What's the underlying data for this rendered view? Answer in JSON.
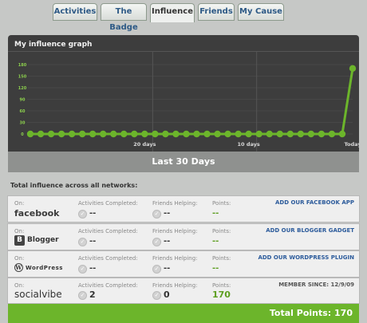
{
  "tabs": [
    "Activities",
    "The Badge",
    "Influence",
    "Friends",
    "My Cause"
  ],
  "active_tab": "Influence",
  "graph_title": "My influence graph",
  "period_label": "Last 30 Days",
  "total_heading": "Total influence across all networks:",
  "labels": {
    "on": "On:",
    "activities": "Activities Completed:",
    "friends": "Friends Helping:",
    "points": "Points:"
  },
  "networks": [
    {
      "name": "facebook",
      "activities": "--",
      "friends": "--",
      "points": "--",
      "action": "ADD OUR FACEBOOK APP"
    },
    {
      "name": "Blogger",
      "activities": "--",
      "friends": "--",
      "points": "--",
      "action": "ADD OUR BLOGGER GADGET"
    },
    {
      "name": "WordPress",
      "activities": "--",
      "friends": "--",
      "points": "--",
      "action": "ADD OUR WORDPRESS PLUGIN"
    },
    {
      "name": "socialvibe",
      "activities": "2",
      "friends": "0",
      "points": "170",
      "action": "MEMBER SINCE: 12/9/09"
    }
  ],
  "total_points": "Total Points:  170",
  "colors": {
    "accent_green": "#6cb52b",
    "graph_bg": "#3d3d3d",
    "tab_text": "#2e5a86"
  },
  "chart_data": {
    "type": "line",
    "title": "My influence graph",
    "ylim": [
      0,
      180
    ],
    "yticks": [
      "180",
      "150",
      "120",
      "90",
      "60",
      "30",
      "0"
    ],
    "xticklabels": [
      "20 days",
      "10 days",
      "Today"
    ],
    "values": [
      0,
      0,
      0,
      0,
      0,
      0,
      0,
      0,
      0,
      0,
      0,
      0,
      0,
      0,
      0,
      0,
      0,
      0,
      0,
      0,
      0,
      0,
      0,
      0,
      0,
      0,
      0,
      0,
      0,
      0,
      0,
      170
    ],
    "grid": true
  }
}
